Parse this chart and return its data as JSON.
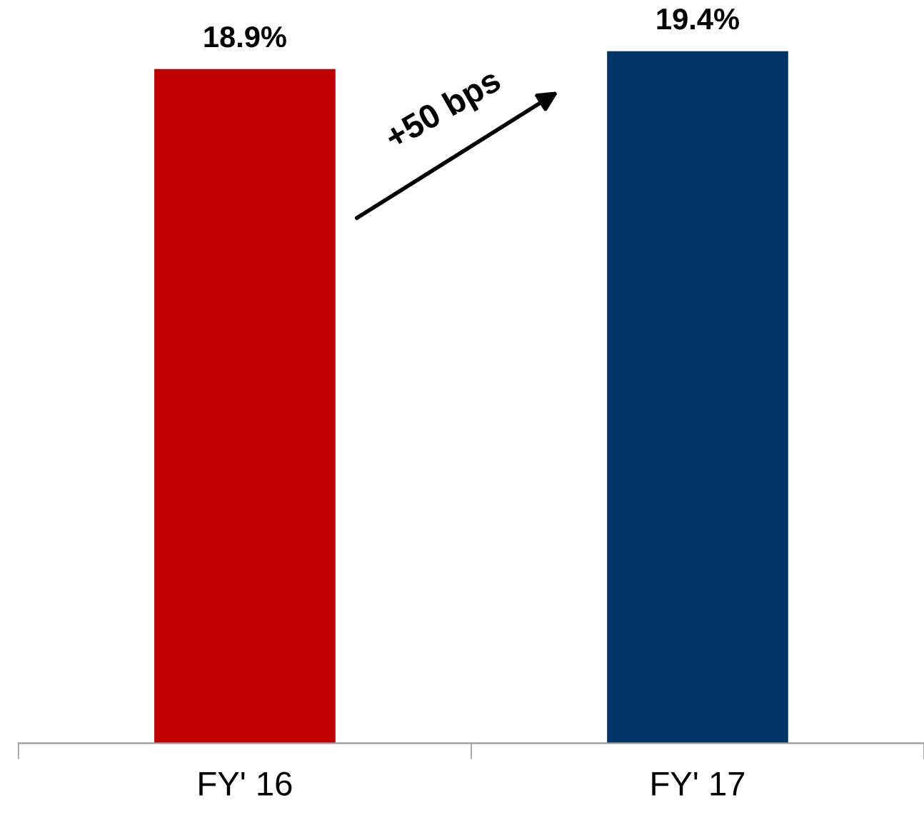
{
  "chart_data": {
    "type": "bar",
    "categories": [
      "FY' 16",
      "FY' 17"
    ],
    "values": [
      18.9,
      19.4
    ],
    "value_labels": [
      "18.9%",
      "19.4%"
    ],
    "colors": [
      "#c00000",
      "#003366"
    ],
    "grid": false,
    "legend": false,
    "annotations": [
      "+50 bps"
    ]
  }
}
